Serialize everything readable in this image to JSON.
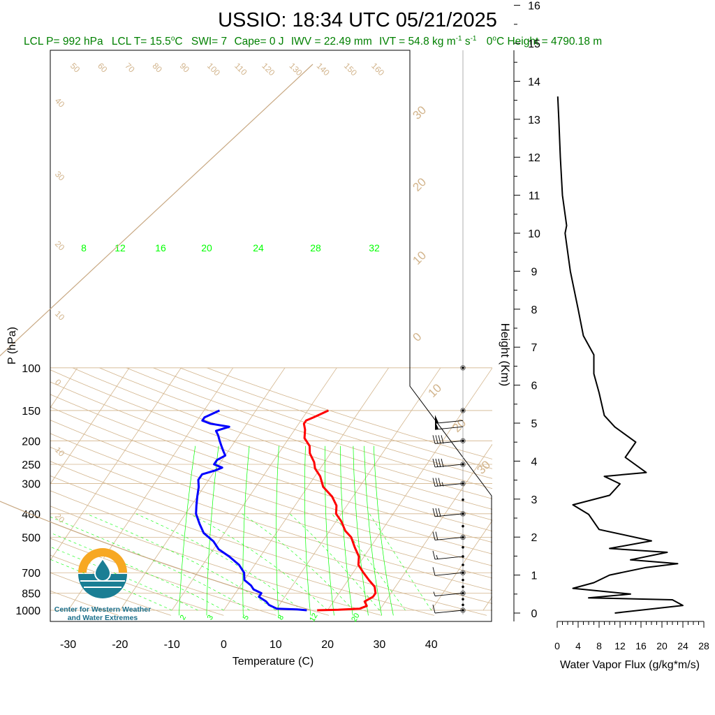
{
  "title": "USSIO: 18:34 UTC 05/21/2025",
  "stats": {
    "lcl_p": "LCL P= 992 hPa",
    "lcl_t": "LCL T= 15.5",
    "lcl_t_unit": "C",
    "swi": "SWI= 7",
    "cape": "Cape= 0 J",
    "iwv": "IWV = 22.49 mm",
    "ivt": "IVT = 54.8 kg m",
    "ivt_unit_2": " s",
    "freezing": "0",
    "freezing_rest": "C Height = 4790.18 m"
  },
  "colors": {
    "temperature": "#ff0000",
    "dewpoint": "#0000ff",
    "stats_text": "#008000",
    "mixing_ratio": "#00ff00",
    "isotherm": "#d2b48c",
    "logo_sun": "#f7a823",
    "logo_water": "#1a7e94"
  },
  "logo": {
    "line1": "Center for Western Weather",
    "line2": "and Water Extremes"
  },
  "chart_data": [
    {
      "type": "line",
      "title": "USSIO: 18:34 UTC 05/21/2025",
      "xlabel": "Temperature (C)",
      "ylabel": "P (hPa)",
      "x_ticks": [
        -30,
        -20,
        -10,
        0,
        10,
        20,
        30,
        40
      ],
      "y_ticks": [
        100,
        150,
        200,
        250,
        300,
        400,
        500,
        700,
        850,
        1000
      ],
      "isotherm_labels": [
        {
          "label": "50"
        },
        {
          "label": "60"
        },
        {
          "label": "70"
        },
        {
          "label": "80"
        },
        {
          "label": "90"
        },
        {
          "label": "100"
        },
        {
          "label": "110"
        },
        {
          "label": "120"
        },
        {
          "label": "130"
        },
        {
          "label": "140"
        },
        {
          "label": "150"
        },
        {
          "label": "160"
        },
        {
          "label": "40"
        },
        {
          "label": "30"
        },
        {
          "label": "20"
        },
        {
          "label": "10"
        },
        {
          "label": "0"
        },
        {
          "label": "10"
        },
        {
          "label": "20"
        }
      ],
      "right_isotherm_labels": [
        "30",
        "20",
        "10",
        "0",
        "10",
        "20",
        "30"
      ],
      "mixing_ratio_labels_top": [
        "8",
        "12",
        "16",
        "20",
        "24",
        "28",
        "32"
      ],
      "mixing_ratio_labels_bottom": [
        "2",
        "3",
        "5",
        "8",
        "12",
        "20"
      ],
      "series": [
        {
          "name": "temperature",
          "points": [
            [
              18,
              1000
            ],
            [
              22,
              995
            ],
            [
              26,
              985
            ],
            [
              27,
              960
            ],
            [
              26,
              920
            ],
            [
              27,
              880
            ],
            [
              27,
              850
            ],
            [
              26,
              800
            ],
            [
              24,
              750
            ],
            [
              22,
              700
            ],
            [
              20,
              650
            ],
            [
              19,
              600
            ],
            [
              17,
              550
            ],
            [
              15,
              500
            ],
            [
              13,
              470
            ],
            [
              11,
              430
            ],
            [
              9,
              400
            ],
            [
              8,
              370
            ],
            [
              6,
              340
            ],
            [
              3,
              310
            ],
            [
              1,
              280
            ],
            [
              -1,
              260
            ],
            [
              -2,
              245
            ],
            [
              -4,
              225
            ],
            [
              -5,
              210
            ],
            [
              -7,
              195
            ],
            [
              -8,
              180
            ],
            [
              -9,
              170
            ],
            [
              -9,
              165
            ],
            [
              -8,
              160
            ],
            [
              -7,
              155
            ],
            [
              -6,
              150
            ]
          ]
        },
        {
          "name": "dewpoint",
          "points": [
            [
              16,
              1000
            ],
            [
              14,
              992
            ],
            [
              10,
              985
            ],
            [
              8,
              950
            ],
            [
              7,
              920
            ],
            [
              5,
              880
            ],
            [
              5,
              850
            ],
            [
              3,
              820
            ],
            [
              2,
              790
            ],
            [
              0,
              750
            ],
            [
              -1,
              700
            ],
            [
              -3,
              650
            ],
            [
              -6,
              600
            ],
            [
              -9,
              560
            ],
            [
              -11,
              520
            ],
            [
              -14,
              480
            ],
            [
              -16,
              440
            ],
            [
              -18,
              400
            ],
            [
              -19,
              370
            ],
            [
              -20,
              340
            ],
            [
              -21,
              310
            ],
            [
              -22,
              290
            ],
            [
              -22,
              275
            ],
            [
              -20,
              265
            ],
            [
              -19,
              258
            ],
            [
              -21,
              250
            ],
            [
              -21,
              240
            ],
            [
              -20,
              230
            ],
            [
              -21,
              220
            ],
            [
              -22,
              210
            ],
            [
              -23,
              200
            ],
            [
              -24,
              190
            ],
            [
              -25,
              182
            ],
            [
              -23,
              175
            ],
            [
              -27,
              170
            ],
            [
              -29,
              165
            ],
            [
              -29,
              160
            ],
            [
              -28,
              155
            ],
            [
              -27,
              150
            ]
          ]
        }
      ],
      "wind_barbs": [
        {
          "p": 1000,
          "dir": 300,
          "speed": 10
        },
        {
          "p": 850,
          "dir": 260,
          "speed": 5
        },
        {
          "p": 700,
          "dir": 250,
          "speed": 10
        },
        {
          "p": 600,
          "dir": 260,
          "speed": 15
        },
        {
          "p": 500,
          "dir": 270,
          "speed": 20
        },
        {
          "p": 400,
          "dir": 270,
          "speed": 30
        },
        {
          "p": 300,
          "dir": 270,
          "speed": 35
        },
        {
          "p": 250,
          "dir": 270,
          "speed": 40
        },
        {
          "p": 200,
          "dir": 270,
          "speed": 40
        },
        {
          "p": 175,
          "dir": 270,
          "speed": 50
        },
        {
          "p": 165,
          "dir": 270,
          "speed": 50
        }
      ]
    },
    {
      "type": "line",
      "xlabel": "Water Vapor Flux (g/kg*m/s)",
      "ylabel": "Height (Km)",
      "x_ticks": [
        0,
        4,
        8,
        12,
        16,
        20,
        24,
        28
      ],
      "y_ticks": [
        0,
        1,
        2,
        3,
        4,
        5,
        6,
        7,
        8,
        9,
        10,
        11,
        12,
        13,
        14,
        15,
        16
      ],
      "series": [
        {
          "name": "water_vapor_flux",
          "points": [
            [
              11,
              0.0
            ],
            [
              24,
              0.2
            ],
            [
              22,
              0.35
            ],
            [
              6,
              0.4
            ],
            [
              14,
              0.5
            ],
            [
              3,
              0.65
            ],
            [
              7,
              0.8
            ],
            [
              10,
              1.0
            ],
            [
              17,
              1.2
            ],
            [
              23,
              1.3
            ],
            [
              14,
              1.4
            ],
            [
              21,
              1.6
            ],
            [
              10,
              1.7
            ],
            [
              18,
              1.9
            ],
            [
              8,
              2.2
            ],
            [
              6,
              2.6
            ],
            [
              3,
              2.85
            ],
            [
              10,
              3.1
            ],
            [
              12,
              3.4
            ],
            [
              9,
              3.6
            ],
            [
              17,
              3.7
            ],
            [
              13,
              4.1
            ],
            [
              15,
              4.5
            ],
            [
              13,
              4.7
            ],
            [
              11,
              4.9
            ],
            [
              9,
              5.2
            ],
            [
              8,
              5.8
            ],
            [
              7,
              6.3
            ],
            [
              7,
              6.8
            ],
            [
              5,
              7.3
            ],
            [
              4,
              8.0
            ],
            [
              2.5,
              9.0
            ],
            [
              1.5,
              10.0
            ],
            [
              1.8,
              10.2
            ],
            [
              1.0,
              11.0
            ],
            [
              0.6,
              12.0
            ],
            [
              0.3,
              13.0
            ],
            [
              0.1,
              13.6
            ]
          ]
        }
      ]
    }
  ]
}
